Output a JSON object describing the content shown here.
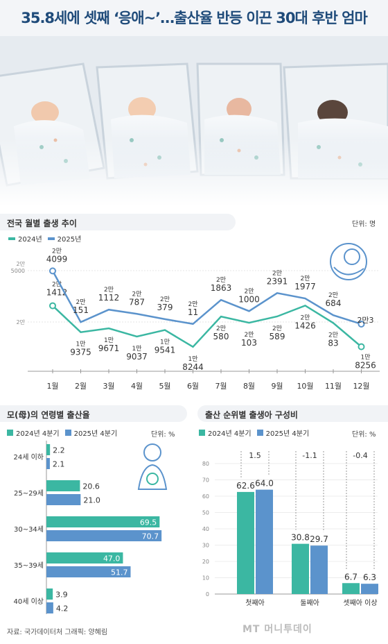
{
  "title": "35.8세에 셋째 ‘응애~’…출산율 반등 이끈 30대 후반 엄마",
  "colors": {
    "teal": "#3bb7a2",
    "blue": "#5b93cc",
    "title": "#1f4b7a"
  },
  "footer": {
    "source": "자료: 국가데이터처  그래픽: 양혜림",
    "logo": "MT 머니투데이"
  },
  "monthly": {
    "heading": "전국 월별 출생 추이",
    "unit": "단위: 명",
    "ytick_top": [
      "2만",
      "5000"
    ],
    "ytick_bottom": "2만",
    "chart_data": {
      "type": "line",
      "categories": [
        "1월",
        "2월",
        "3월",
        "4월",
        "5월",
        "6월",
        "7월",
        "8월",
        "9월",
        "10월",
        "11월",
        "12월"
      ],
      "series": [
        {
          "name": "2024년",
          "color": "#3bb7a2",
          "values": [
            21412,
            19375,
            19671,
            19037,
            19541,
            18244,
            20580,
            20103,
            20589,
            21426,
            20083,
            18256
          ],
          "labels": [
            [
              "2만",
              "1412"
            ],
            [
              "1만",
              "9375"
            ],
            [
              "1만",
              "9671"
            ],
            [
              "1만",
              "9037"
            ],
            [
              "1만",
              "9541"
            ],
            [
              "1만",
              "8244"
            ],
            [
              "2만",
              "580"
            ],
            [
              "2만",
              "103"
            ],
            [
              "2만",
              "589"
            ],
            [
              "2만",
              "1426"
            ],
            [
              "2만",
              "83"
            ],
            [
              "1만",
              "8256"
            ]
          ]
        },
        {
          "name": "2025년",
          "color": "#5b93cc",
          "values": [
            24099,
            20151,
            21112,
            20787,
            20379,
            20011,
            21863,
            21000,
            22391,
            21977,
            20684,
            20003
          ],
          "labels": [
            [
              "2만",
              "4099"
            ],
            [
              "2만",
              "151"
            ],
            [
              "2만",
              "1112"
            ],
            [
              "2만",
              "787"
            ],
            [
              "2만",
              "379"
            ],
            [
              "2만",
              "11"
            ],
            [
              "2만",
              "1863"
            ],
            [
              "2만",
              "1000"
            ],
            [
              "2만",
              "2391"
            ],
            [
              "2만",
              "1977"
            ],
            [
              "2만",
              "684"
            ],
            [
              "2만3"
            ]
          ]
        }
      ]
    }
  },
  "age": {
    "heading": "모(母)의 연령별 출산율",
    "unit": "단위: %",
    "chart_data": {
      "type": "bar",
      "orientation": "horizontal",
      "categories": [
        "24세 이하",
        "25~29세",
        "30~34세",
        "35~39세",
        "40세 이상"
      ],
      "series": [
        {
          "name": "2024년 4분기",
          "color": "#3bb7a2",
          "values": [
            2.2,
            20.6,
            69.5,
            47.0,
            3.9
          ],
          "labels": [
            "2.2",
            "20.6",
            "69.5",
            "47.0",
            "3.9"
          ]
        },
        {
          "name": "2025년 4분기",
          "color": "#5b93cc",
          "values": [
            2.1,
            21.0,
            70.7,
            51.7,
            4.2
          ],
          "labels": [
            "2.1",
            "21.0",
            "70.7",
            "51.7",
            "4.2"
          ]
        }
      ]
    }
  },
  "order": {
    "heading": "출산 순위별 출생아 구성비",
    "unit": "단위: %",
    "chart_data": {
      "type": "bar",
      "categories": [
        "첫째아",
        "둘째아",
        "셋째아 이상"
      ],
      "ylim": [
        0,
        80
      ],
      "yticks": [
        "0",
        "10",
        "20",
        "30",
        "40",
        "50",
        "60",
        "70",
        "80"
      ],
      "changes": [
        "1.5",
        "-1.1",
        "-0.4"
      ],
      "series": [
        {
          "name": "2024년 4분기",
          "color": "#3bb7a2",
          "values": [
            62.6,
            30.8,
            6.7
          ],
          "labels": [
            "62.6",
            "30.8",
            "6.7"
          ]
        },
        {
          "name": "2025년 4분기",
          "color": "#5b93cc",
          "values": [
            64.0,
            29.7,
            6.3
          ],
          "labels": [
            "64.0",
            "29.7",
            "6.3"
          ]
        }
      ]
    }
  }
}
